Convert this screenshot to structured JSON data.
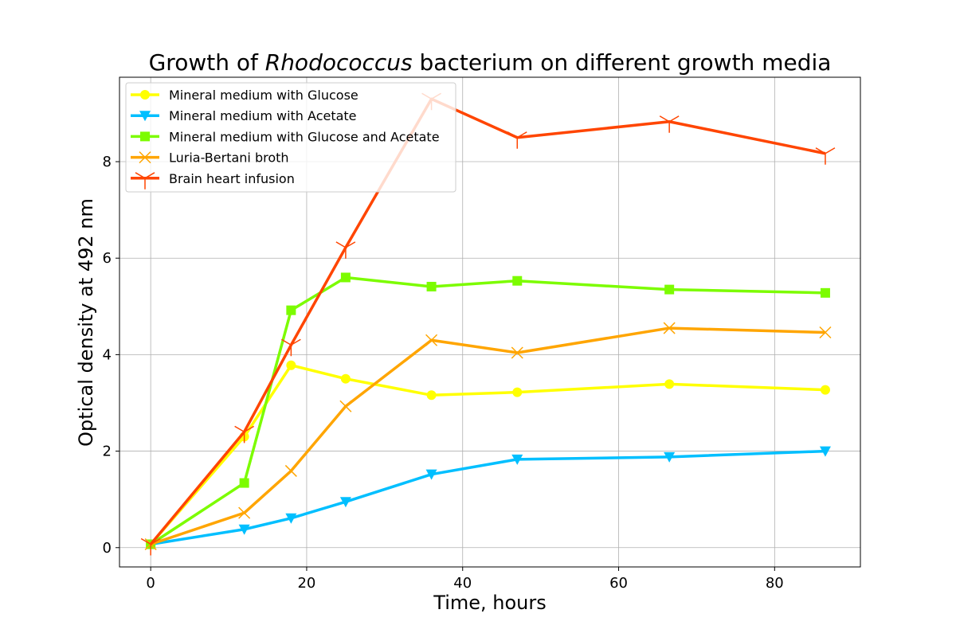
{
  "chart_data": {
    "type": "line",
    "title_prefix": "Growth of ",
    "title_italic": "Rhodococcus",
    "title_suffix": " bacterium on different growth media",
    "xlabel": "Time, hours",
    "ylabel": "Optical density at 492 nm",
    "xlim": [
      -4,
      91
    ],
    "ylim": [
      -0.4,
      9.75
    ],
    "xticks": [
      0,
      20,
      40,
      60,
      80
    ],
    "yticks": [
      0,
      2,
      4,
      6,
      8
    ],
    "grid": true,
    "legend_position": "top-left",
    "x": [
      0,
      12,
      18,
      25,
      36,
      47,
      66.5,
      86.5
    ],
    "series": [
      {
        "name": "Mineral medium with Glucose",
        "color": "#ffff00",
        "marker": "circle",
        "values": [
          0.07,
          2.3,
          3.78,
          3.5,
          3.16,
          3.22,
          3.39,
          3.27
        ]
      },
      {
        "name": "Mineral medium with Acetate",
        "color": "#00bfff",
        "marker": "triangle-down",
        "values": [
          0.07,
          0.38,
          0.61,
          0.95,
          1.52,
          1.83,
          1.88,
          2.0
        ]
      },
      {
        "name": "Mineral medium with Glucose and Acetate",
        "color": "#7cfc00",
        "marker": "square",
        "values": [
          0.07,
          1.34,
          4.92,
          5.6,
          5.41,
          5.53,
          5.35,
          5.28
        ]
      },
      {
        "name": "Luria-Bertani broth",
        "color": "#ffa500",
        "marker": "x",
        "values": [
          0.07,
          0.72,
          1.59,
          2.93,
          4.3,
          4.04,
          4.55,
          4.46
        ]
      },
      {
        "name": "Brain heart infusion",
        "color": "#ff4500",
        "marker": "tri-down",
        "values": [
          0.07,
          2.4,
          4.2,
          6.22,
          9.3,
          8.5,
          8.83,
          8.17
        ]
      }
    ]
  }
}
